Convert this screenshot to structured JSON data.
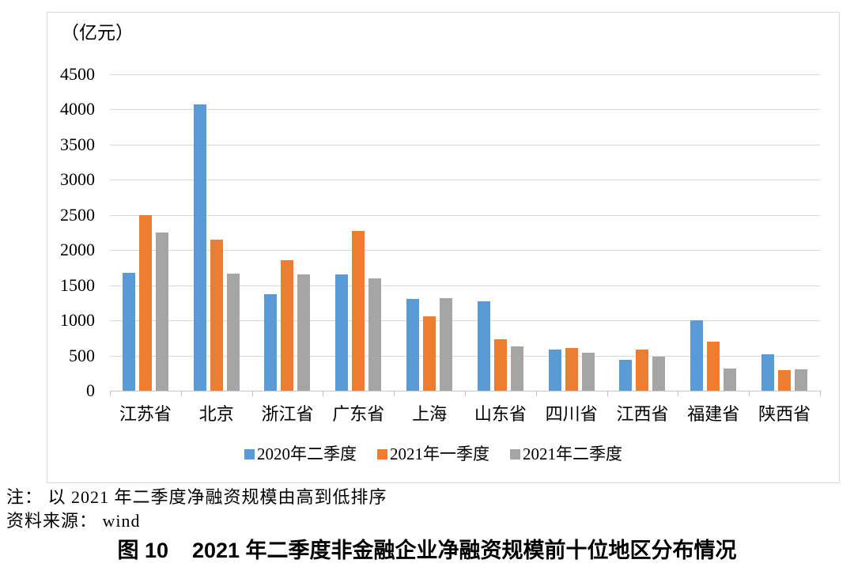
{
  "figure": {
    "unit_label": "（亿元）",
    "note_line1": "注： 以 2021 年二季度净融资规模由高到低排序",
    "note_line2": "资料来源： wind",
    "caption_label": "图 10",
    "caption_title": "2021 年二季度非金融企业净融资规模前十位地区分布情况"
  },
  "chart_data": {
    "type": "bar",
    "title": "图 10 2021 年二季度非金融企业净融资规模前十位地区分布情况",
    "unit": "亿元",
    "xlabel": "",
    "ylabel": "（亿元）",
    "ylim": [
      0,
      4500
    ],
    "ytick_step": 500,
    "grid": true,
    "legend_position": "bottom",
    "categories": [
      "江苏省",
      "北京",
      "浙江省",
      "广东省",
      "上海",
      "山东省",
      "四川省",
      "江西省",
      "福建省",
      "陕西省"
    ],
    "series": [
      {
        "name": "2020年二季度",
        "color": "#5B9BD5",
        "values": [
          1680,
          4070,
          1370,
          1650,
          1310,
          1270,
          590,
          440,
          1000,
          520
        ]
      },
      {
        "name": "2021年一季度",
        "color": "#ED7D31",
        "values": [
          2500,
          2150,
          1860,
          2270,
          1060,
          730,
          610,
          590,
          700,
          290
        ]
      },
      {
        "name": "2021年二季度",
        "color": "#A5A5A5",
        "values": [
          2250,
          1660,
          1650,
          1600,
          1320,
          630,
          540,
          480,
          310,
          300
        ]
      }
    ]
  },
  "colors": {
    "grid": "#d9d9d9",
    "axis_line": "#c9c9c9",
    "tick": "#bfbfbf",
    "frame_border": "#d9d9d9",
    "text": "#000000"
  }
}
